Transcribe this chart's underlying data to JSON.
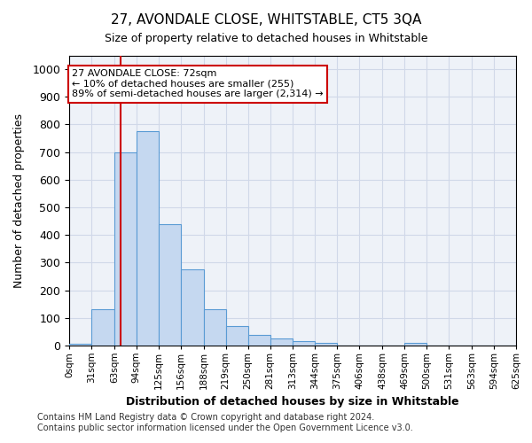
{
  "title": "27, AVONDALE CLOSE, WHITSTABLE, CT5 3QA",
  "subtitle": "Size of property relative to detached houses in Whitstable",
  "xlabel": "Distribution of detached houses by size in Whitstable",
  "ylabel": "Number of detached properties",
  "footer_line1": "Contains HM Land Registry data © Crown copyright and database right 2024.",
  "footer_line2": "Contains public sector information licensed under the Open Government Licence v3.0.",
  "bin_edges": [
    0,
    31,
    63,
    94,
    125,
    156,
    188,
    219,
    250,
    281,
    313,
    344,
    375,
    406,
    438,
    469,
    500,
    531,
    563,
    594,
    625
  ],
  "bar_heights": [
    8,
    130,
    700,
    775,
    438,
    275,
    130,
    70,
    40,
    25,
    15,
    10,
    0,
    0,
    0,
    10,
    0,
    0,
    0,
    0
  ],
  "bar_color": "#c5d8f0",
  "bar_edge_color": "#5a9bd4",
  "property_size": 72,
  "red_line_color": "#cc0000",
  "annotation_text": "27 AVONDALE CLOSE: 72sqm\n← 10% of detached houses are smaller (255)\n89% of semi-detached houses are larger (2,314) →",
  "annotation_box_color": "#ffffff",
  "annotation_box_edge": "#cc0000",
  "ylim": [
    0,
    1050
  ],
  "yticks": [
    0,
    100,
    200,
    300,
    400,
    500,
    600,
    700,
    800,
    900,
    1000
  ],
  "tick_labels": [
    "0sqm",
    "31sqm",
    "63sqm",
    "94sqm",
    "125sqm",
    "156sqm",
    "188sqm",
    "219sqm",
    "250sqm",
    "281sqm",
    "313sqm",
    "344sqm",
    "375sqm",
    "406sqm",
    "438sqm",
    "469sqm",
    "500sqm",
    "531sqm",
    "563sqm",
    "594sqm",
    "625sqm"
  ],
  "grid_color": "#d0d8e8",
  "background_color": "#ffffff",
  "plot_bg_color": "#eef2f8"
}
